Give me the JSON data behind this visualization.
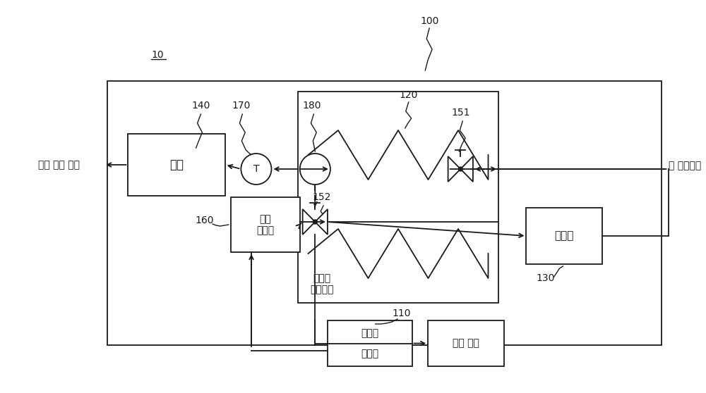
{
  "bg_color": "#ffffff",
  "line_color": "#1a1a1a",
  "fig_width": 10.0,
  "fig_height": 5.58,
  "labels": {
    "100": "100",
    "10": "10",
    "140": "140",
    "170": "170",
    "180": "180",
    "151": "151",
    "152": "152",
    "160": "160",
    "120": "120",
    "110": "110",
    "130": "130",
    "engine": "엔진",
    "anomaly": "이상\n감지부",
    "anode_cathode": "애노드\n케소드",
    "cooler": "냉각기",
    "anode_offgas": "애노드\n오프가스",
    "extra_gen": "추가 전기 생성",
    "elec_gen": "전기 생성",
    "exhaust": "일 배출가스"
  }
}
